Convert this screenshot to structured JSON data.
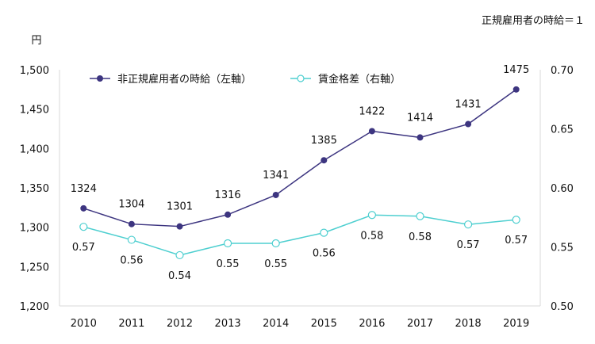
{
  "chart_data": {
    "type": "line",
    "note": "正規雇用者の時給＝１",
    "left_unit": "円",
    "categories": [
      "2010",
      "2011",
      "2012",
      "2013",
      "2014",
      "2015",
      "2016",
      "2017",
      "2018",
      "2019"
    ],
    "y_left": {
      "min": 1200,
      "max": 1500,
      "ticks": [
        "1,200",
        "1,250",
        "1,300",
        "1,350",
        "1,400",
        "1,450",
        "1,500"
      ],
      "tick_values": [
        1200,
        1250,
        1300,
        1350,
        1400,
        1450,
        1500
      ]
    },
    "y_right": {
      "min": 0.5,
      "max": 0.7,
      "ticks": [
        "0.50",
        "0.55",
        "0.60",
        "0.65",
        "0.70"
      ],
      "tick_values": [
        0.5,
        0.55,
        0.6,
        0.65,
        0.7
      ]
    },
    "series": [
      {
        "name": "非正規雇用者の時給（左軸）",
        "axis": "left",
        "color": "#3d3580",
        "marker": "filled-circle",
        "values": [
          1324,
          1304,
          1301,
          1316,
          1341,
          1385,
          1422,
          1414,
          1431,
          1475
        ],
        "labels": [
          "1324",
          "1304",
          "1301",
          "1316",
          "1341",
          "1385",
          "1422",
          "1414",
          "1431",
          "1475"
        ]
      },
      {
        "name": "賃金格差（右軸）",
        "axis": "right",
        "color": "#4ecfd0",
        "marker": "hollow-circle",
        "values": [
          0.567,
          0.556,
          0.543,
          0.553,
          0.553,
          0.562,
          0.577,
          0.576,
          0.569,
          0.573
        ],
        "labels": [
          "0.57",
          "0.56",
          "0.54",
          "0.55",
          "0.55",
          "0.56",
          "0.58",
          "0.58",
          "0.57",
          "0.57"
        ]
      }
    ],
    "grid": false,
    "legend_position": "top-left"
  }
}
